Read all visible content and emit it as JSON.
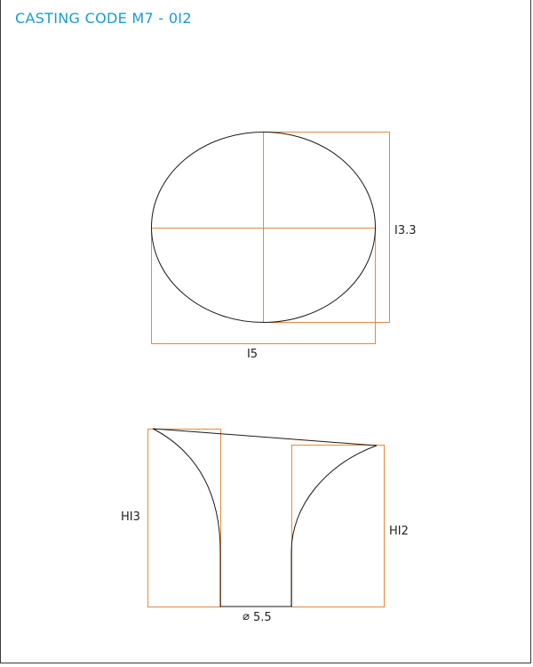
{
  "title": "CASTING CODE M7 - 0I2",
  "top_view": {
    "width_label": "I5",
    "depth_label": "I3.3"
  },
  "side_view": {
    "left_height_label": "HI3",
    "right_height_label": "HI2",
    "diameter_symbol": "⌀",
    "diameter_label": "5.5"
  },
  "colors": {
    "title": "#1b9ad6",
    "outline": "#1a1a1a",
    "dimension_box": "#e8893a",
    "frame": "#3a3a3a"
  }
}
